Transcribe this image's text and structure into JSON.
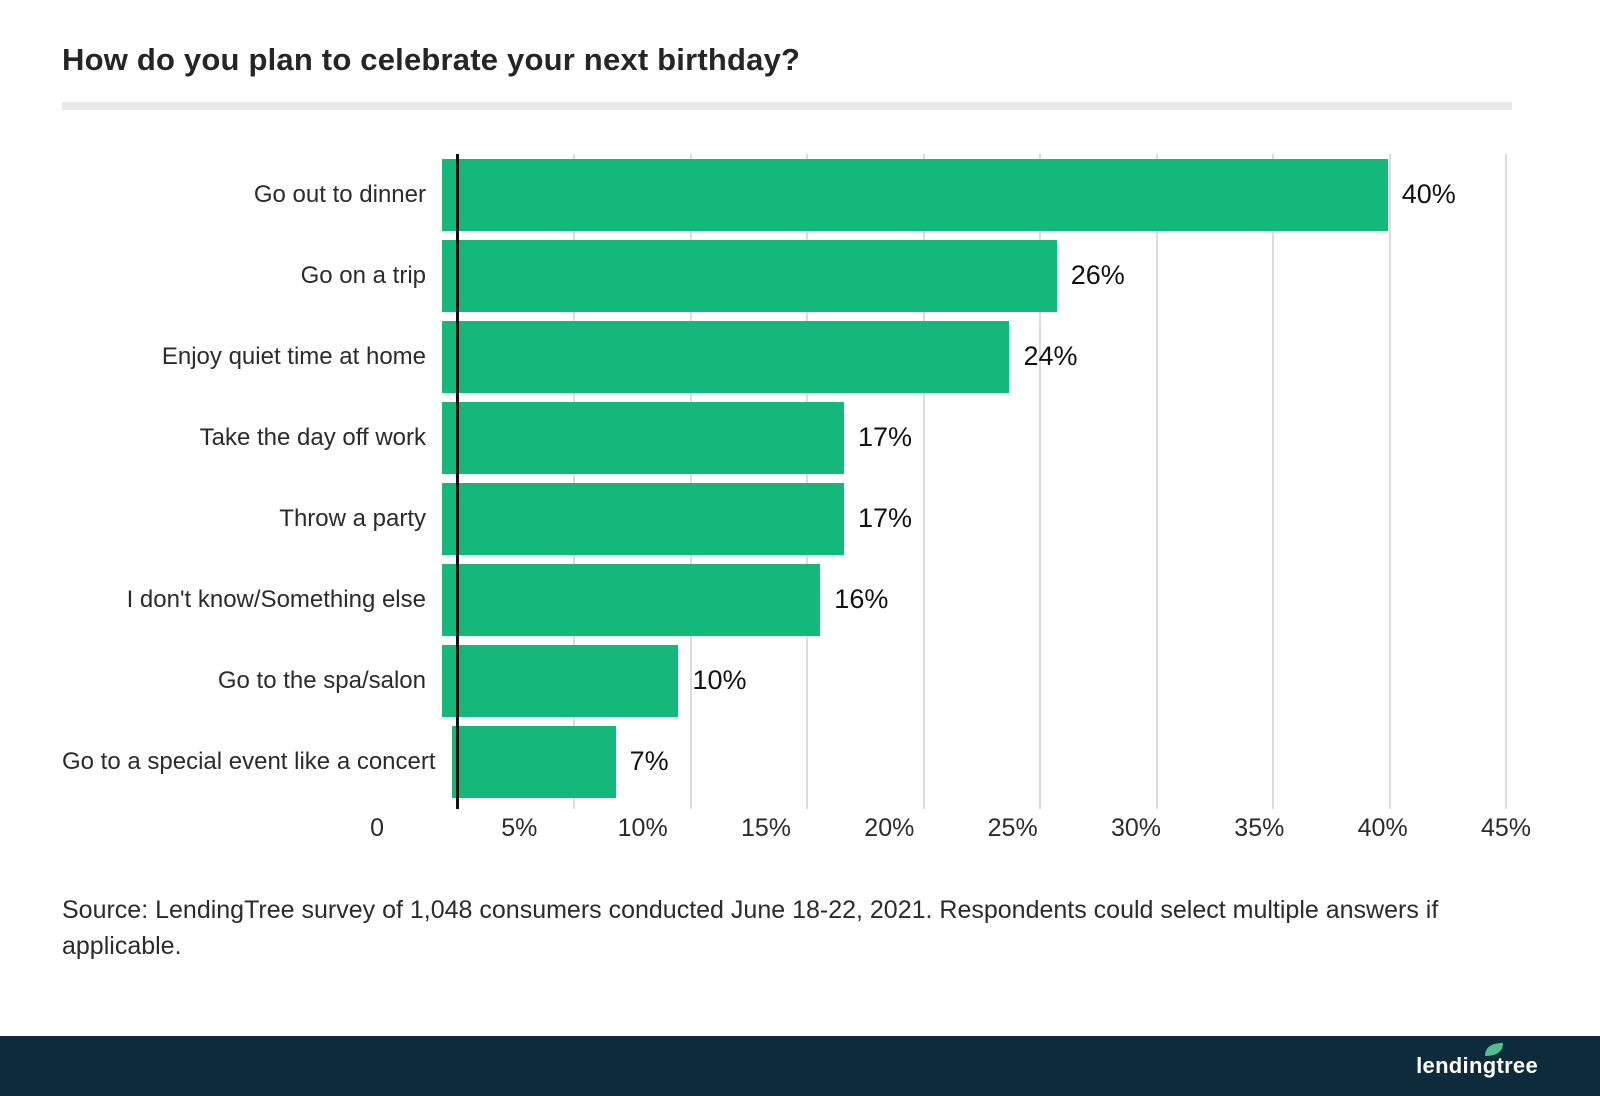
{
  "page": {
    "title": "How do you plan to celebrate your next birthday?",
    "source_text": "Source: LendingTree survey of 1,048 consumers conducted June 18-22, 2021. Respondents could select multiple answers if applicable.",
    "footer": {
      "logo_text": "lendingtree"
    }
  },
  "colors": {
    "bar": "#14b87a",
    "footer-bg": "#0d2b3a",
    "grid": "#dcdcdc",
    "axis": "#111111",
    "divider": "#e8e8e8"
  },
  "chart_data": {
    "type": "bar",
    "orientation": "horizontal",
    "title": "How do you plan to celebrate your next birthday?",
    "categories": [
      "Go out to dinner",
      "Go on a trip",
      "Enjoy quiet time at home",
      "Take the day off work",
      "Throw a party",
      "I don't know/Something else",
      "Go to the spa/salon",
      "Go to a special event like a concert"
    ],
    "values": [
      40,
      26,
      24,
      17,
      17,
      16,
      10,
      7
    ],
    "value_labels": [
      "40%",
      "26%",
      "24%",
      "17%",
      "17%",
      "16%",
      "10%",
      "7%"
    ],
    "xlabel": "",
    "ylabel": "",
    "xlim": [
      0,
      45
    ],
    "x_ticks": [
      "0",
      "5%",
      "10%",
      "15%",
      "20%",
      "25%",
      "30%",
      "35%",
      "40%",
      "45%"
    ],
    "grid": true,
    "legend": false
  }
}
